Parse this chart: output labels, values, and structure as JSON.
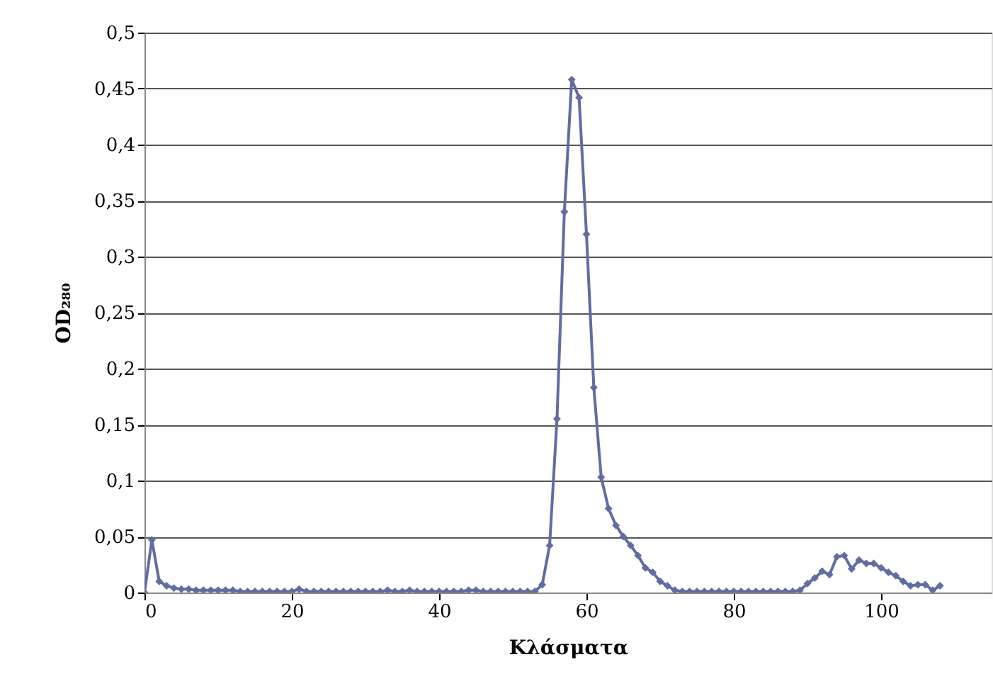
{
  "chart_data": {
    "type": "line",
    "xlabel": "Κλάσματα",
    "ylabel": "OD₂₈₀",
    "x": [
      0,
      1,
      2,
      3,
      4,
      5,
      6,
      7,
      8,
      9,
      10,
      11,
      12,
      13,
      14,
      15,
      16,
      17,
      18,
      19,
      20,
      21,
      22,
      23,
      24,
      25,
      26,
      27,
      28,
      29,
      30,
      31,
      32,
      33,
      34,
      35,
      36,
      37,
      38,
      39,
      40,
      41,
      42,
      43,
      44,
      45,
      46,
      47,
      48,
      49,
      50,
      51,
      52,
      53,
      54,
      55,
      56,
      57,
      58,
      59,
      60,
      61,
      62,
      63,
      64,
      65,
      66,
      67,
      68,
      69,
      70,
      71,
      72,
      73,
      74,
      75,
      76,
      77,
      78,
      79,
      80,
      81,
      82,
      83,
      84,
      85,
      86,
      87,
      88,
      89,
      90,
      91,
      92,
      93,
      94,
      95,
      96,
      97,
      98,
      99,
      100,
      101,
      102,
      103,
      104,
      105,
      106,
      107,
      108
    ],
    "series": [
      {
        "color": "#636ca1",
        "values": [
          0,
          0.047,
          0.01,
          0.006,
          0.004,
          0.003,
          0.003,
          0.002,
          0.002,
          0.002,
          0.002,
          0.002,
          0.002,
          0.001,
          0.001,
          0.001,
          0.001,
          0.001,
          0.001,
          0.001,
          0.001,
          0.003,
          0.001,
          0.001,
          0.001,
          0.001,
          0.001,
          0.001,
          0.001,
          0.001,
          0.001,
          0.001,
          0.001,
          0.002,
          0.001,
          0.001,
          0.002,
          0.001,
          0.001,
          0.001,
          0.001,
          0.001,
          0.001,
          0.001,
          0.002,
          0.002,
          0.001,
          0.001,
          0.001,
          0.001,
          0.001,
          0.001,
          0.001,
          0.001,
          0.007,
          0.042,
          0.155,
          0.34,
          0.458,
          0.442,
          0.32,
          0.183,
          0.103,
          0.075,
          0.06,
          0.05,
          0.042,
          0.033,
          0.022,
          0.018,
          0.01,
          0.006,
          0.002,
          0.001,
          0.001,
          0.001,
          0.001,
          0.001,
          0.001,
          0.001,
          0.001,
          0.001,
          0.001,
          0.001,
          0.001,
          0.001,
          0.001,
          0.001,
          0.001,
          0.002,
          0.008,
          0.013,
          0.019,
          0.016,
          0.032,
          0.033,
          0.021,
          0.029,
          0.026,
          0.026,
          0.022,
          0.018,
          0.015,
          0.01,
          0.006,
          0.007,
          0.007,
          0.002,
          0.006
        ]
      }
    ],
    "xlim": [
      0,
      115
    ],
    "xticks": [
      0,
      20,
      40,
      60,
      80,
      100
    ],
    "ylim": [
      0,
      0.5
    ],
    "yticks": [
      {
        "value": 0,
        "label": "0"
      },
      {
        "value": 0.05,
        "label": "0,05"
      },
      {
        "value": 0.1,
        "label": "0,1"
      },
      {
        "value": 0.15,
        "label": "0,15"
      },
      {
        "value": 0.2,
        "label": "0,2"
      },
      {
        "value": 0.25,
        "label": "0,25"
      },
      {
        "value": 0.3,
        "label": "0,3"
      },
      {
        "value": 0.35,
        "label": "0,35"
      },
      {
        "value": 0.4,
        "label": "0,4"
      },
      {
        "value": 0.45,
        "label": "0,45"
      },
      {
        "value": 0.5,
        "label": "0,5"
      }
    ],
    "grid": "y",
    "marker": "diamond",
    "line_style": "solid",
    "legend": false
  }
}
